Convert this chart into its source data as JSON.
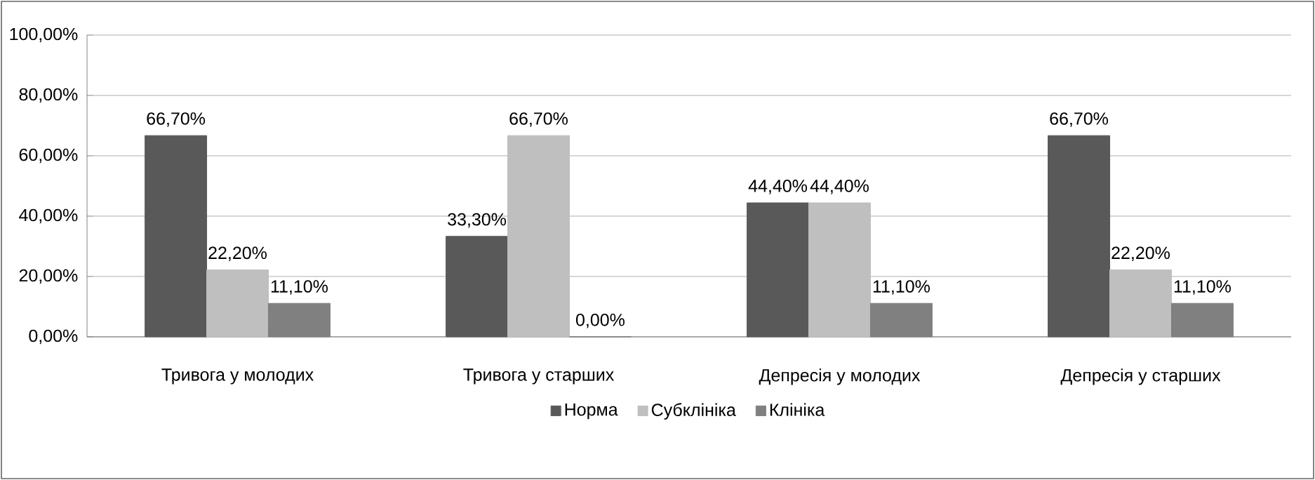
{
  "chart_data": {
    "type": "bar",
    "categories": [
      "Тривога у молодих",
      "Тривога у старших",
      "Депресія у молодих",
      "Депресія у старших"
    ],
    "series": [
      {
        "name": "Норма",
        "color": "#595959",
        "values": [
          66.7,
          33.3,
          44.4,
          66.7
        ],
        "value_labels": [
          "66,70%",
          "33,30%",
          "44,40%",
          "66,70%"
        ]
      },
      {
        "name": "Субклініка",
        "color": "#bfbfbf",
        "values": [
          22.2,
          66.7,
          44.4,
          22.2
        ],
        "value_labels": [
          "22,20%",
          "66,70%",
          "44,40%",
          "22,20%"
        ]
      },
      {
        "name": "Клініка",
        "color": "#808080",
        "values": [
          11.1,
          0,
          11.1,
          11.1
        ],
        "value_labels": [
          "11,10%",
          "0,00%",
          "11,10%",
          "11,10%"
        ]
      }
    ],
    "ylim": [
      0,
      100
    ],
    "yticks": [
      {
        "value": 0,
        "label": "0,00%"
      },
      {
        "value": 20,
        "label": "20,00%"
      },
      {
        "value": 40,
        "label": "40,00%"
      },
      {
        "value": 60,
        "label": "60,00%"
      },
      {
        "value": 80,
        "label": "80,00%"
      },
      {
        "value": 100,
        "label": "100,00%"
      }
    ],
    "grid": "y",
    "legend": "bottom"
  }
}
